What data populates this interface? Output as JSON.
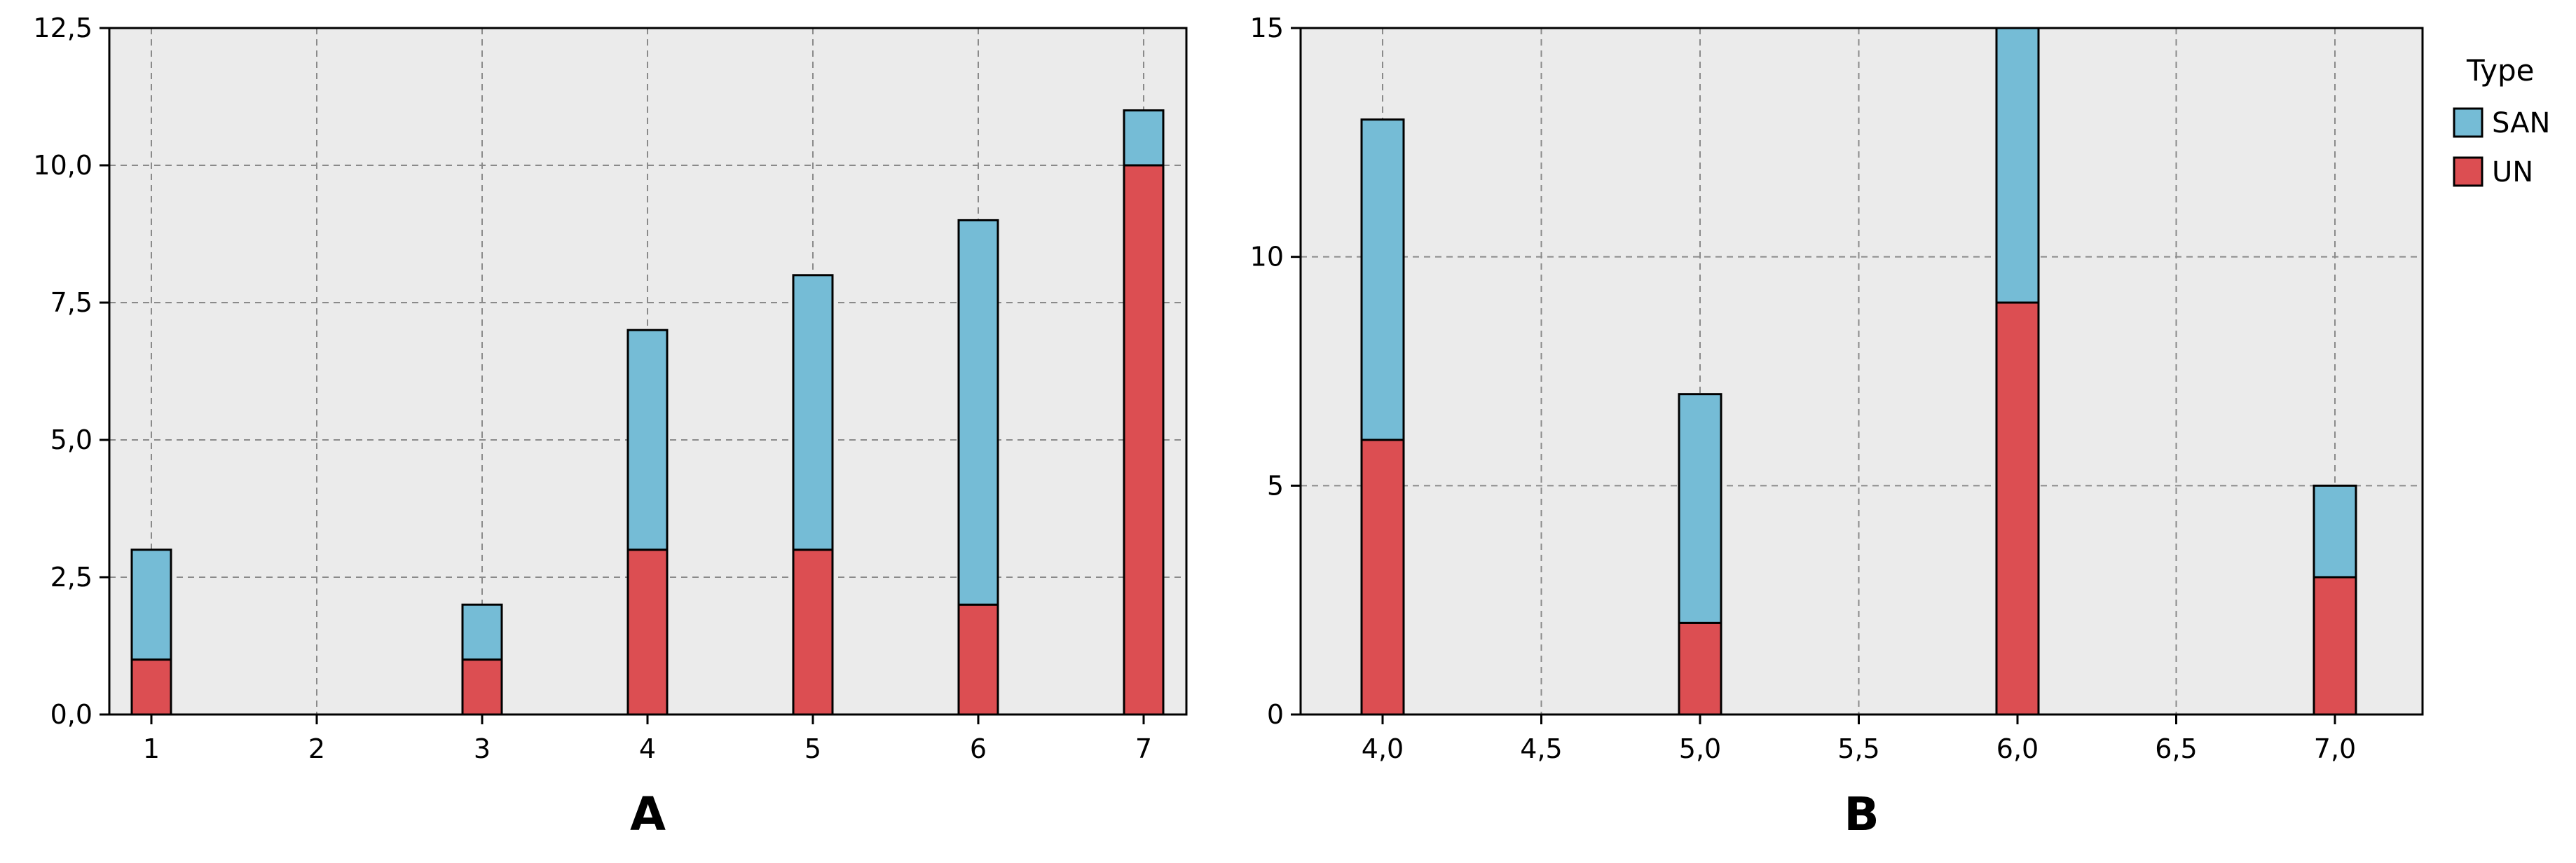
{
  "colors": {
    "SAN": "#75bcd6",
    "UN": "#dc4e52",
    "plot_background": "#ebebeb",
    "grid": "#8a8a8a",
    "axis": "#000000"
  },
  "legend": {
    "title": "Type",
    "placement": "right",
    "items": [
      {
        "label": "SAN",
        "color": "#75bcd6"
      },
      {
        "label": "UN",
        "color": "#dc4e52"
      }
    ]
  },
  "chart_data": [
    {
      "type": "bar",
      "stacked": true,
      "panel_label": "A",
      "title": "",
      "xlabel": "",
      "ylabel": "",
      "x": [
        1,
        3,
        4,
        5,
        6,
        7
      ],
      "series": [
        {
          "name": "UN",
          "values": [
            1,
            1,
            3,
            3,
            2,
            10
          ]
        },
        {
          "name": "SAN",
          "values": [
            2,
            1,
            4,
            5,
            7,
            1
          ]
        }
      ],
      "xlim": [
        1,
        7
      ],
      "ylim": [
        0,
        12.5
      ],
      "xticks": [
        1,
        2,
        3,
        4,
        5,
        6,
        7
      ],
      "xtick_labels": [
        "1",
        "2",
        "3",
        "4",
        "5",
        "6",
        "7"
      ],
      "yticks": [
        0,
        2.5,
        5,
        7.5,
        10,
        12.5
      ],
      "ytick_labels": [
        "0,0",
        "2,5",
        "5,0",
        "7,5",
        "10,0",
        "12,5"
      ],
      "grid": true
    },
    {
      "type": "bar",
      "stacked": true,
      "panel_label": "B",
      "title": "",
      "xlabel": "",
      "ylabel": "",
      "x": [
        4.0,
        5.0,
        6.0,
        7.0
      ],
      "series": [
        {
          "name": "UN",
          "values": [
            6,
            2,
            9,
            3
          ]
        },
        {
          "name": "SAN",
          "values": [
            7,
            5,
            6,
            2
          ]
        }
      ],
      "xlim": [
        4.0,
        7.0
      ],
      "ylim": [
        0,
        15
      ],
      "xticks": [
        4.0,
        4.5,
        5.0,
        5.5,
        6.0,
        6.5,
        7.0
      ],
      "xtick_labels": [
        "4,0",
        "4,5",
        "5,0",
        "5,5",
        "6,0",
        "6,5",
        "7,0"
      ],
      "yticks": [
        0,
        5,
        10,
        15
      ],
      "ytick_labels": [
        "0",
        "5",
        "10",
        "15"
      ],
      "grid": true
    }
  ]
}
